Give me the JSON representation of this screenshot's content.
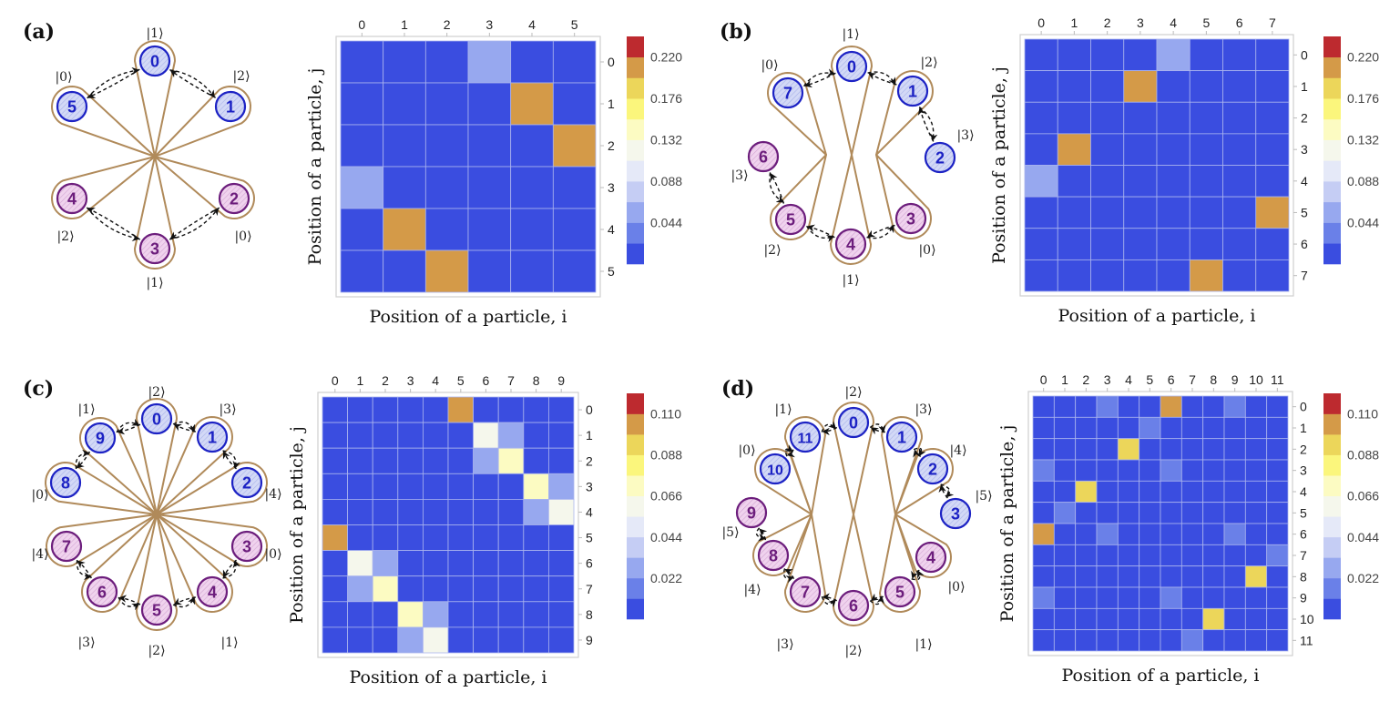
{
  "panels": [
    {
      "label": "(a)",
      "diagram": {
        "nodes": [
          {
            "id": "0",
            "ket": "|1⟩",
            "group": "blue"
          },
          {
            "id": "1",
            "ket": "|2⟩",
            "group": "blue"
          },
          {
            "id": "2",
            "ket": "|0⟩",
            "group": "purple"
          },
          {
            "id": "3",
            "ket": "|1⟩",
            "group": "purple"
          },
          {
            "id": "4",
            "ket": "|2⟩",
            "group": "purple"
          },
          {
            "id": "5",
            "ket": "|0⟩",
            "group": "blue"
          }
        ],
        "hopping_chains": [
          [
            "5",
            "0",
            "1"
          ],
          [
            "4",
            "3",
            "2"
          ]
        ]
      }
    },
    {
      "label": "(b)",
      "diagram": {
        "nodes": [
          {
            "id": "0",
            "ket": "|1⟩",
            "group": "blue"
          },
          {
            "id": "1",
            "ket": "|2⟩",
            "group": "blue"
          },
          {
            "id": "2",
            "ket": "|3⟩",
            "group": "blue"
          },
          {
            "id": "3",
            "ket": "|0⟩",
            "group": "purple"
          },
          {
            "id": "4",
            "ket": "|1⟩",
            "group": "purple"
          },
          {
            "id": "5",
            "ket": "|2⟩",
            "group": "purple"
          },
          {
            "id": "6",
            "ket": "|3⟩",
            "group": "purple"
          },
          {
            "id": "7",
            "ket": "|0⟩",
            "group": "blue"
          }
        ],
        "hopping_chains": [
          [
            "7",
            "0",
            "1",
            "2"
          ],
          [
            "6",
            "5",
            "4",
            "3"
          ]
        ]
      }
    },
    {
      "label": "(c)",
      "diagram": {
        "nodes": [
          {
            "id": "0",
            "ket": "|2⟩",
            "group": "blue"
          },
          {
            "id": "1",
            "ket": "|3⟩",
            "group": "blue"
          },
          {
            "id": "2",
            "ket": "|4⟩",
            "group": "blue"
          },
          {
            "id": "3",
            "ket": "|0⟩",
            "group": "purple"
          },
          {
            "id": "4",
            "ket": "|1⟩",
            "group": "purple"
          },
          {
            "id": "5",
            "ket": "|2⟩",
            "group": "purple"
          },
          {
            "id": "6",
            "ket": "|3⟩",
            "group": "purple"
          },
          {
            "id": "7",
            "ket": "|4⟩",
            "group": "purple"
          },
          {
            "id": "8",
            "ket": "|0⟩",
            "group": "blue"
          },
          {
            "id": "9",
            "ket": "|1⟩",
            "group": "blue"
          }
        ],
        "hopping_chains": [
          [
            "8",
            "9",
            "0",
            "1",
            "2"
          ],
          [
            "7",
            "6",
            "5",
            "4",
            "3"
          ]
        ]
      }
    },
    {
      "label": "(d)",
      "diagram": {
        "nodes": [
          {
            "id": "0",
            "ket": "|2⟩",
            "group": "blue"
          },
          {
            "id": "1",
            "ket": "|3⟩",
            "group": "blue"
          },
          {
            "id": "2",
            "ket": "|4⟩",
            "group": "blue"
          },
          {
            "id": "3",
            "ket": "|5⟩",
            "group": "blue"
          },
          {
            "id": "4",
            "ket": "|0⟩",
            "group": "purple"
          },
          {
            "id": "5",
            "ket": "|1⟩",
            "group": "purple"
          },
          {
            "id": "6",
            "ket": "|2⟩",
            "group": "purple"
          },
          {
            "id": "7",
            "ket": "|3⟩",
            "group": "purple"
          },
          {
            "id": "8",
            "ket": "|4⟩",
            "group": "purple"
          },
          {
            "id": "9",
            "ket": "|5⟩",
            "group": "purple"
          },
          {
            "id": "10",
            "ket": "|0⟩",
            "group": "blue"
          },
          {
            "id": "11",
            "ket": "|1⟩",
            "group": "blue"
          }
        ],
        "hopping_chains": [
          [
            "10",
            "11",
            "0",
            "1",
            "2",
            "3"
          ],
          [
            "9",
            "8",
            "7",
            "6",
            "5",
            "4"
          ]
        ]
      }
    }
  ],
  "colors": {
    "node_blue_stroke": "#1c22c4",
    "node_blue_fill": "#c9d0f3",
    "node_purple_stroke": "#6c1d7c",
    "node_purple_fill": "#ecc9ea",
    "loop": "#b08a5a"
  },
  "chart_data": [
    {
      "type": "heatmap",
      "xlabel": "Position of a particle, i",
      "ylabel": "Position of a particle, j",
      "x_categories": [
        "0",
        "1",
        "2",
        "3",
        "4",
        "5"
      ],
      "y_categories": [
        "0",
        "1",
        "2",
        "3",
        "4",
        "5"
      ],
      "values": [
        [
          0,
          0,
          0,
          0.06,
          0,
          0
        ],
        [
          0,
          0,
          0,
          0,
          0.21,
          0
        ],
        [
          0,
          0,
          0,
          0,
          0,
          0.21
        ],
        [
          0.06,
          0,
          0,
          0,
          0,
          0
        ],
        [
          0,
          0.21,
          0,
          0,
          0,
          0
        ],
        [
          0,
          0,
          0.21,
          0,
          0,
          0
        ]
      ],
      "colorbar": {
        "min": 0,
        "max": 0.242,
        "ticks": [
          "0.044",
          "0.088",
          "0.132",
          "0.176",
          "0.220"
        ]
      },
      "palette": [
        "#3a4de0",
        "#6a80e8",
        "#97a8ef",
        "#c5cdf4",
        "#e5e9f8",
        "#f5f7ec",
        "#fcfbc2",
        "#fbf67c",
        "#ecd65a",
        "#d49a48",
        "#bd2a2f"
      ],
      "grid": true
    },
    {
      "type": "heatmap",
      "xlabel": "Position of a particle, i",
      "ylabel": "Position of a particle, j",
      "x_categories": [
        "0",
        "1",
        "2",
        "3",
        "4",
        "5",
        "6",
        "7"
      ],
      "y_categories": [
        "0",
        "1",
        "2",
        "3",
        "4",
        "5",
        "6",
        "7"
      ],
      "values": [
        [
          0,
          0,
          0,
          0,
          0.06,
          0,
          0,
          0
        ],
        [
          0,
          0,
          0,
          0.21,
          0,
          0,
          0,
          0
        ],
        [
          0,
          0,
          0,
          0,
          0,
          0,
          0,
          0
        ],
        [
          0,
          0.21,
          0,
          0,
          0,
          0,
          0,
          0
        ],
        [
          0.06,
          0,
          0,
          0,
          0,
          0,
          0,
          0
        ],
        [
          0,
          0,
          0,
          0,
          0,
          0,
          0,
          0.21
        ],
        [
          0,
          0,
          0,
          0,
          0,
          0,
          0,
          0
        ],
        [
          0,
          0,
          0,
          0,
          0,
          0.21,
          0,
          0
        ]
      ],
      "colorbar": {
        "min": 0,
        "max": 0.242,
        "ticks": [
          "0.044",
          "0.088",
          "0.132",
          "0.176",
          "0.220"
        ]
      },
      "palette": [
        "#3a4de0",
        "#6a80e8",
        "#97a8ef",
        "#c5cdf4",
        "#e5e9f8",
        "#f5f7ec",
        "#fcfbc2",
        "#fbf67c",
        "#ecd65a",
        "#d49a48",
        "#bd2a2f"
      ],
      "grid": true
    },
    {
      "type": "heatmap",
      "xlabel": "Position of a particle, i",
      "ylabel": "Position of a particle, j",
      "x_categories": [
        "0",
        "1",
        "2",
        "3",
        "4",
        "5",
        "6",
        "7",
        "8",
        "9"
      ],
      "y_categories": [
        "0",
        "1",
        "2",
        "3",
        "4",
        "5",
        "6",
        "7",
        "8",
        "9"
      ],
      "values": [
        [
          0,
          0,
          0,
          0,
          0,
          0.105,
          0,
          0,
          0,
          0
        ],
        [
          0,
          0,
          0,
          0.005,
          0,
          0,
          0.06,
          0.03,
          0,
          0
        ],
        [
          0,
          0,
          0,
          0,
          0.005,
          0,
          0.03,
          0.075,
          0,
          0
        ],
        [
          0,
          0.005,
          0,
          0,
          0,
          0,
          0,
          0,
          0.075,
          0.03
        ],
        [
          0,
          0,
          0.005,
          0,
          0,
          0,
          0,
          0,
          0.03,
          0.06
        ],
        [
          0.105,
          0,
          0,
          0,
          0,
          0,
          0,
          0,
          0,
          0
        ],
        [
          0,
          0.06,
          0.03,
          0,
          0,
          0,
          0,
          0,
          0.005,
          0
        ],
        [
          0,
          0.03,
          0.075,
          0,
          0,
          0,
          0,
          0,
          0,
          0.005
        ],
        [
          0,
          0,
          0,
          0.075,
          0.03,
          0,
          0.005,
          0,
          0,
          0
        ],
        [
          0,
          0,
          0,
          0.03,
          0.06,
          0,
          0,
          0.005,
          0,
          0
        ]
      ],
      "colorbar": {
        "min": 0,
        "max": 0.121,
        "ticks": [
          "0.022",
          "0.044",
          "0.066",
          "0.088",
          "0.110"
        ]
      },
      "palette": [
        "#3a4de0",
        "#6a80e8",
        "#97a8ef",
        "#c5cdf4",
        "#e5e9f8",
        "#f5f7ec",
        "#fcfbc2",
        "#fbf67c",
        "#ecd65a",
        "#d49a48",
        "#bd2a2f"
      ],
      "grid": true
    },
    {
      "type": "heatmap",
      "xlabel": "Position of a particle, i",
      "ylabel": "Position of a particle, j",
      "x_categories": [
        "0",
        "1",
        "2",
        "3",
        "4",
        "5",
        "6",
        "7",
        "8",
        "9",
        "10",
        "11"
      ],
      "y_categories": [
        "0",
        "1",
        "2",
        "3",
        "4",
        "5",
        "6",
        "7",
        "8",
        "9",
        "10",
        "11"
      ],
      "values": [
        [
          0.004,
          0.004,
          0.004,
          0.015,
          0.004,
          0.004,
          0.105,
          0.004,
          0.004,
          0.015,
          0.004,
          0.004
        ],
        [
          0.004,
          0.004,
          0.004,
          0.004,
          0.004,
          0.015,
          0.004,
          0.004,
          0.004,
          0.004,
          0.004,
          0.004
        ],
        [
          0.004,
          0.004,
          0.004,
          0.004,
          0.09,
          0.004,
          0.004,
          0.004,
          0.004,
          0.004,
          0.004,
          0.004
        ],
        [
          0.015,
          0.004,
          0.004,
          0.004,
          0.004,
          0.004,
          0.015,
          0.004,
          0.004,
          0.004,
          0.004,
          0.004
        ],
        [
          0.004,
          0.004,
          0.09,
          0.004,
          0.004,
          0.004,
          0.004,
          0.004,
          0.004,
          0.004,
          0.004,
          0.004
        ],
        [
          0.004,
          0.015,
          0.004,
          0.004,
          0.004,
          0.004,
          0.004,
          0.004,
          0.004,
          0.004,
          0.004,
          0.004
        ],
        [
          0.105,
          0.004,
          0.004,
          0.015,
          0.004,
          0.004,
          0.004,
          0.004,
          0.004,
          0.015,
          0.004,
          0.004
        ],
        [
          0.004,
          0.004,
          0.004,
          0.004,
          0.004,
          0.004,
          0.004,
          0.004,
          0.004,
          0.004,
          0.004,
          0.015
        ],
        [
          0.004,
          0.004,
          0.004,
          0.004,
          0.004,
          0.004,
          0.004,
          0.004,
          0.004,
          0.004,
          0.09,
          0.004
        ],
        [
          0.015,
          0.004,
          0.004,
          0.004,
          0.004,
          0.004,
          0.015,
          0.004,
          0.004,
          0.004,
          0.004,
          0.004
        ],
        [
          0.004,
          0.004,
          0.004,
          0.004,
          0.004,
          0.004,
          0.004,
          0.004,
          0.09,
          0.004,
          0.004,
          0.004
        ],
        [
          0.004,
          0.004,
          0.004,
          0.004,
          0.004,
          0.004,
          0.004,
          0.015,
          0.004,
          0.004,
          0.004,
          0.004
        ]
      ],
      "colorbar": {
        "min": 0,
        "max": 0.121,
        "ticks": [
          "0.022",
          "0.044",
          "0.066",
          "0.088",
          "0.110"
        ]
      },
      "palette": [
        "#3a4de0",
        "#6a80e8",
        "#97a8ef",
        "#c5cdf4",
        "#e5e9f8",
        "#f5f7ec",
        "#fcfbc2",
        "#fbf67c",
        "#ecd65a",
        "#d49a48",
        "#bd2a2f"
      ],
      "grid": true
    }
  ]
}
